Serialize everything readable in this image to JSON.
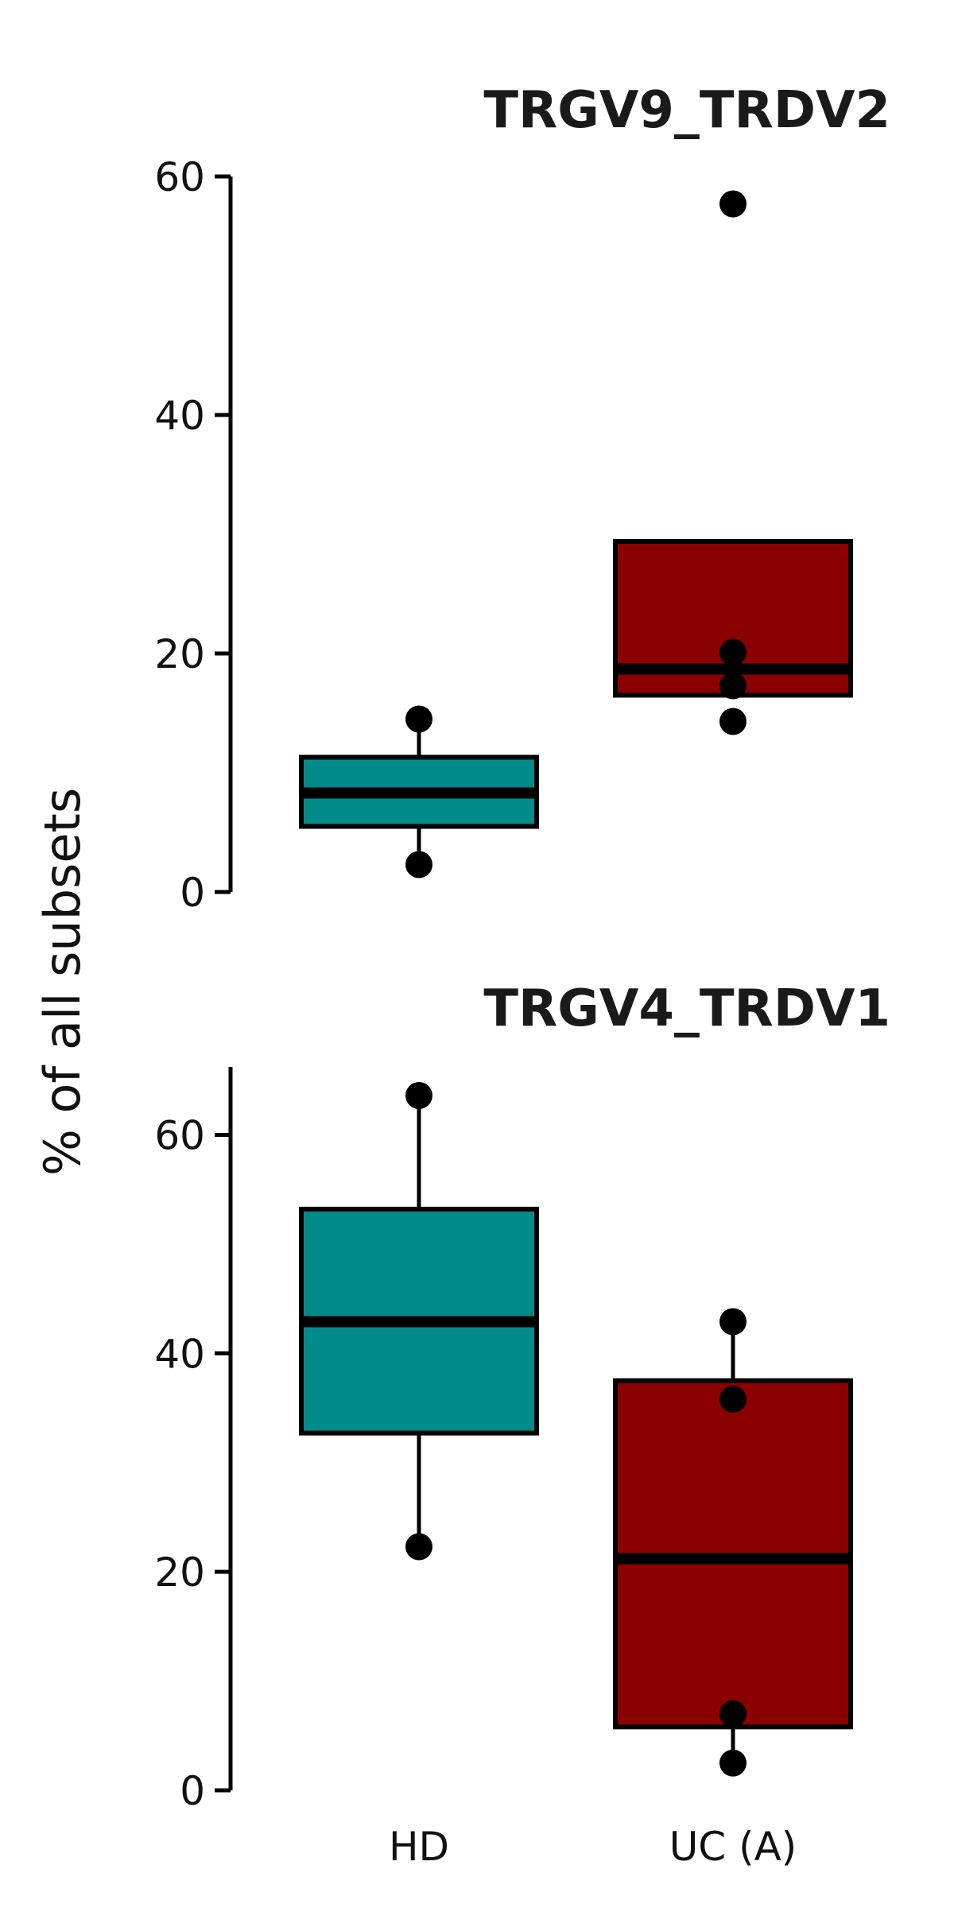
{
  "figure": {
    "ylabel": "% of all subsets"
  },
  "chart_data": [
    {
      "type": "box",
      "title": "TRGV9_TRDV2",
      "categories": [
        "HD",
        "UC (A)"
      ],
      "ylim": [
        0,
        60
      ],
      "yticks": [
        0,
        20,
        40,
        60
      ],
      "show_xticklabels": false,
      "grid": false,
      "boxes": [
        {
          "category": "HD",
          "color": "#008b8b",
          "q1": 5.5,
          "median": 8.3,
          "q3": 11.3,
          "whisker_low": 2.3,
          "whisker_high": 14.5
        },
        {
          "category": "UC (A)",
          "color": "#8b0000",
          "q1": 16.5,
          "median": 18.7,
          "q3": 29.4,
          "whisker_low": 16.5,
          "whisker_high": 29.4
        }
      ],
      "points": [
        {
          "category": "HD",
          "y": 14.5
        },
        {
          "category": "HD",
          "y": 2.3
        },
        {
          "category": "UC (A)",
          "y": 57.7
        },
        {
          "category": "UC (A)",
          "y": 20.1
        },
        {
          "category": "UC (A)",
          "y": 17.3
        },
        {
          "category": "UC (A)",
          "y": 14.3
        }
      ]
    },
    {
      "type": "box",
      "title": "TRGV4_TRDV1",
      "categories": [
        "HD",
        "UC (A)"
      ],
      "ylim": [
        0,
        66
      ],
      "yticks": [
        0,
        20,
        40,
        60
      ],
      "show_xticklabels": true,
      "grid": false,
      "boxes": [
        {
          "category": "HD",
          "color": "#008b8b",
          "q1": 32.7,
          "median": 42.9,
          "q3": 53.2,
          "whisker_low": 22.3,
          "whisker_high": 63.6
        },
        {
          "category": "UC (A)",
          "color": "#8b0000",
          "q1": 5.8,
          "median": 21.2,
          "q3": 37.5,
          "whisker_low": 2.5,
          "whisker_high": 42.9
        }
      ],
      "points": [
        {
          "category": "HD",
          "y": 63.6
        },
        {
          "category": "HD",
          "y": 22.3
        },
        {
          "category": "UC (A)",
          "y": 42.9
        },
        {
          "category": "UC (A)",
          "y": 35.8
        },
        {
          "category": "UC (A)",
          "y": 7.0
        },
        {
          "category": "UC (A)",
          "y": 2.5
        }
      ]
    }
  ]
}
